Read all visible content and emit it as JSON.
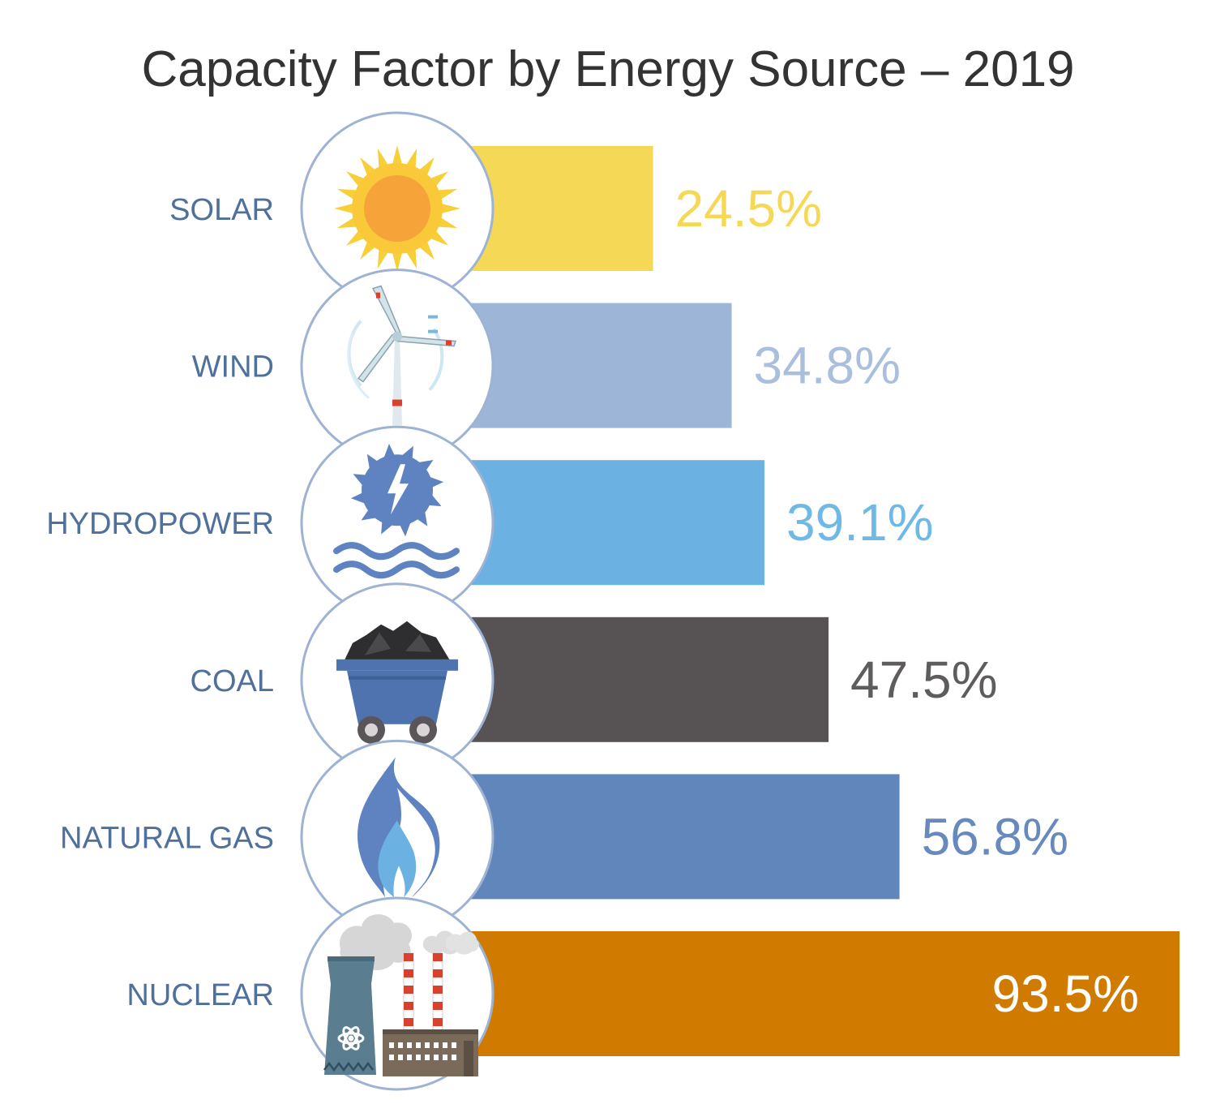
{
  "chart_data": {
    "type": "bar",
    "orientation": "horizontal",
    "title": "Capacity Factor by Energy Source – 2019",
    "xlabel": "",
    "ylabel": "",
    "xlim": [
      0,
      93.5
    ],
    "grid": false,
    "legend": "none",
    "unit": "%",
    "categories": [
      "SOLAR",
      "WIND",
      "HYDROPOWER",
      "COAL",
      "NATURAL GAS",
      "NUCLEAR"
    ],
    "values": [
      24.5,
      34.8,
      39.1,
      47.5,
      56.8,
      93.5
    ],
    "value_labels": [
      "24.5%",
      "34.8%",
      "39.1%",
      "47.5%",
      "56.8%",
      "93.5%"
    ],
    "bar_colors": [
      "#f5d855",
      "#9db5d6",
      "#6bb2e2",
      "#575355",
      "#6186bb",
      "#d17a00"
    ],
    "label_colors": [
      "#f5d855",
      "#a9bfdc",
      "#6fb9e6",
      "#5f5c5e",
      "#6789bd",
      "#ffffff"
    ],
    "icons": [
      "sun-icon",
      "wind-turbine-icon",
      "hydropower-turbine-icon",
      "coal-cart-icon",
      "gas-flame-icon",
      "nuclear-plant-icon"
    ]
  }
}
